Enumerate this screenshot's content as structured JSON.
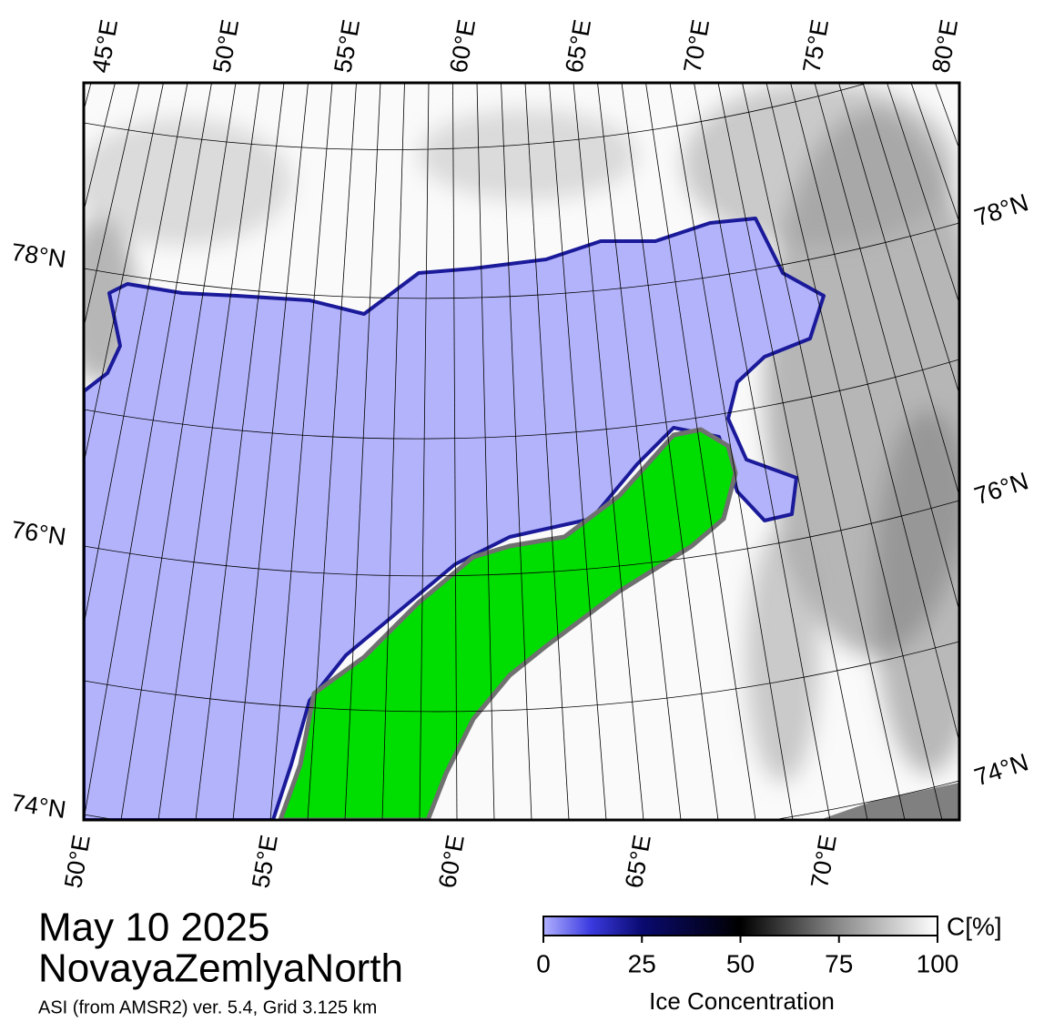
{
  "map": {
    "top_labels": [
      "45°E",
      "50°E",
      "55°E",
      "60°E",
      "65°E",
      "70°E",
      "75°E",
      "80°E"
    ],
    "bottom_labels": [
      "50°E",
      "55°E",
      "60°E",
      "65°E",
      "70°E"
    ],
    "left_labels": [
      "78°N",
      "76°N",
      "74°N"
    ],
    "right_labels": [
      "78°N",
      "76°N",
      "74°N"
    ]
  },
  "footer": {
    "date": "May 10 2025",
    "region": "NovayaZemlyaNorth",
    "source": "ASI (from AMSR2) ver. 5.4,  Grid 3.125 km"
  },
  "colorbar": {
    "unit": "C[%]",
    "ticks": [
      0,
      25,
      50,
      75,
      100
    ],
    "label": "Ice Concentration"
  }
}
